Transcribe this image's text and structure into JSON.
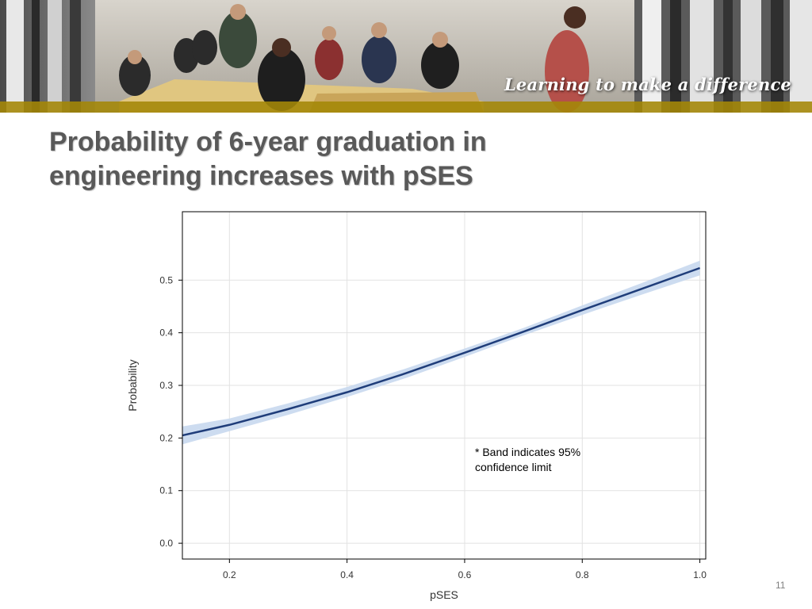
{
  "banner": {
    "tagline": "Learning to make a difference",
    "photo_subject": "students-in-classroom-photo",
    "accent_color": "#d9b200"
  },
  "slide": {
    "title_line1": "Probability of 6-year graduation in",
    "title_line2": "engineering increases with pSES",
    "note_line1": "* Band indicates 95%",
    "note_line2": "confidence limit",
    "number": "11"
  },
  "chart_data": {
    "type": "line",
    "title": "",
    "xlabel": "pSES",
    "ylabel": "Probability",
    "xlim": [
      0.12,
      1.01
    ],
    "ylim": [
      -0.03,
      0.63
    ],
    "xticks": [
      0.2,
      0.4,
      0.6,
      0.8,
      1.0
    ],
    "xtick_labels": [
      "0.2",
      "0.4",
      "0.6",
      "0.8",
      "1.0"
    ],
    "yticks": [
      0.0,
      0.1,
      0.2,
      0.3,
      0.4,
      0.5
    ],
    "ytick_labels": [
      "0.0",
      "0.1",
      "0.2",
      "0.3",
      "0.4",
      "0.5"
    ],
    "grid": true,
    "line_color": "#1f3d7a",
    "band_color": "#c8d8ee",
    "series": [
      {
        "x": [
          0.12,
          0.2,
          0.3,
          0.4,
          0.5,
          0.6,
          0.7,
          0.8,
          0.9,
          1.0
        ],
        "y": [
          0.205,
          0.225,
          0.255,
          0.287,
          0.323,
          0.362,
          0.402,
          0.443,
          0.483,
          0.523
        ],
        "lower": [
          0.188,
          0.213,
          0.244,
          0.278,
          0.314,
          0.354,
          0.395,
          0.434,
          0.472,
          0.509
        ],
        "upper": [
          0.222,
          0.237,
          0.266,
          0.297,
          0.332,
          0.37,
          0.409,
          0.452,
          0.494,
          0.537
        ]
      }
    ]
  }
}
